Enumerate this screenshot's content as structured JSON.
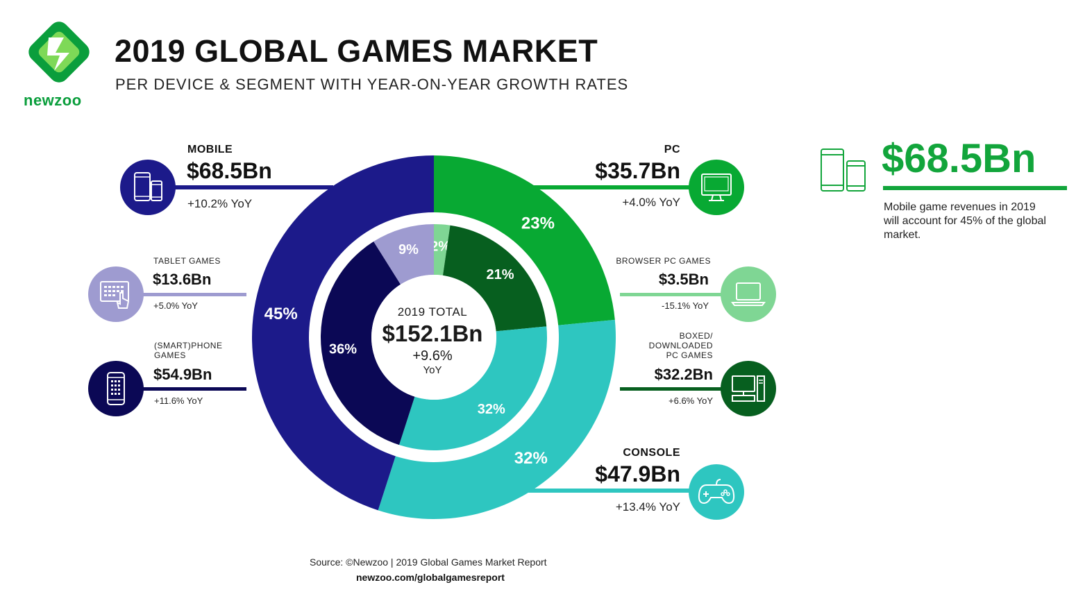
{
  "header": {
    "title": "2019 GLOBAL GAMES MARKET",
    "subtitle": "PER DEVICE & SEGMENT WITH YEAR-ON-YEAR GROWTH RATES",
    "brand": "newzoo"
  },
  "center": {
    "label": "2019 TOTAL",
    "value": "$152.1Bn",
    "growth": "+9.6%",
    "growth_unit": "YoY"
  },
  "segments": {
    "mobile": {
      "name": "MOBILE",
      "value": "$68.5Bn",
      "yoy": "+10.2% YoY",
      "icon": "mobile-devices-icon"
    },
    "pc": {
      "name": "PC",
      "value": "$35.7Bn",
      "yoy": "+4.0% YoY",
      "icon": "monitor-icon"
    },
    "console": {
      "name": "CONSOLE",
      "value": "$47.9Bn",
      "yoy": "+13.4% YoY",
      "icon": "gamepad-icon"
    },
    "tablet": {
      "name": "TABLET GAMES",
      "value": "$13.6Bn",
      "yoy": "+5.0% YoY",
      "icon": "tablet-touch-icon"
    },
    "smartphone": {
      "name_line1": "(SMART)PHONE",
      "name_line2": "GAMES",
      "value": "$54.9Bn",
      "yoy": "+11.6% YoY",
      "icon": "smartphone-icon"
    },
    "browser_pc": {
      "name": "BROWSER PC GAMES",
      "value": "$3.5Bn",
      "yoy": "-15.1% YoY",
      "icon": "laptop-icon"
    },
    "boxed_pc": {
      "name_line1": "BOXED/",
      "name_line2": "DOWNLOADED",
      "name_line3": "PC GAMES",
      "value": "$32.2Bn",
      "yoy": "+6.6% YoY",
      "icon": "desktop-tower-icon"
    }
  },
  "callout": {
    "value": "$68.5Bn",
    "text": "Mobile game revenues in 2019 will account for 45% of the global market.",
    "icon": "mobile-devices-icon"
  },
  "footer": {
    "source": "Source: ©Newzoo | 2019 Global Games Market Report",
    "url": "newzoo.com/globalgamesreport"
  },
  "colors": {
    "mobile": "#1c1a8a",
    "tablet": "#9e9bd0",
    "smartphone": "#0b0855",
    "pc": "#08a933",
    "browser_pc": "#7fd694",
    "boxed_pc": "#075f1f",
    "console": "#2ec6c0",
    "brand_green": "#12a53b"
  },
  "chart_data": {
    "type": "pie",
    "title": "2019 GLOBAL GAMES MARKET",
    "outer_ring": {
      "categories": [
        "PC",
        "CONSOLE",
        "MOBILE"
      ],
      "values": [
        35.7,
        47.9,
        68.5
      ],
      "percent_labels": [
        "23%",
        "32%",
        "45%"
      ]
    },
    "inner_ring": {
      "categories": [
        "BROWSER PC GAMES",
        "BOXED/DOWNLOADED PC GAMES",
        "CONSOLE",
        "(SMART)PHONE GAMES",
        "TABLET GAMES"
      ],
      "values": [
        3.5,
        32.2,
        47.9,
        54.9,
        13.6
      ],
      "percent_labels": [
        "2%",
        "21%",
        "32%",
        "36%",
        "9%"
      ]
    },
    "total": 152.1,
    "unit": "$Bn"
  }
}
